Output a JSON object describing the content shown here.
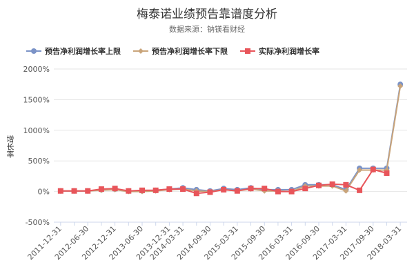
{
  "chart_data": {
    "type": "line",
    "title": "梅泰诺业绩预告靠谱度分析",
    "subtitle": "数据来源：钠镁看财经",
    "ylabel": "增长率",
    "xlabel": "",
    "ylim": [
      -500,
      2000
    ],
    "yticks": [
      "-500%",
      "0%",
      "500%",
      "1000%",
      "1500%",
      "2000%"
    ],
    "grid": "horizontal",
    "legend_position": "top-left",
    "x": [
      "2011-12-31",
      "2012-03-31",
      "2012-06-30",
      "2012-09-30",
      "2012-12-31",
      "2013-03-31",
      "2013-06-30",
      "2013-09-30",
      "2013-12-31",
      "2014-03-31",
      "2014-06-30",
      "2014-09-30",
      "2014-12-31",
      "2015-03-31",
      "2015-06-30",
      "2015-09-30",
      "2015-12-31",
      "2016-03-31",
      "2016-06-30",
      "2016-09-30",
      "2016-12-31",
      "2017-03-31",
      "2017-06-30",
      "2017-09-30",
      "2017-12-31",
      "2018-03-31"
    ],
    "x_tick_labels": [
      "2011-12-31",
      "2012-06-30",
      "2012-12-31",
      "2013-06-30",
      "2013-12-31",
      "2014-03-31",
      "2014-09-30",
      "2015-03-31",
      "2015-09-30",
      "2016-03-31",
      "2016-09-30",
      "2017-03-31",
      "2017-09-30",
      "2018-03-31"
    ],
    "series": [
      {
        "name": "预告净利润增长率上限",
        "color": "#7b93c7",
        "marker": "circle",
        "values": [
          10,
          10,
          10,
          30,
          40,
          10,
          10,
          20,
          40,
          60,
          30,
          10,
          50,
          30,
          60,
          30,
          30,
          30,
          110,
          110,
          110,
          30,
          380,
          380,
          380,
          1750
        ]
      },
      {
        "name": "预告净利润增长率下限",
        "color": "#c9a47a",
        "marker": "diamond",
        "values": [
          10,
          10,
          10,
          20,
          30,
          0,
          0,
          10,
          30,
          40,
          10,
          0,
          30,
          10,
          40,
          10,
          10,
          0,
          90,
          90,
          90,
          10,
          350,
          350,
          350,
          1720
        ]
      },
      {
        "name": "实际净利润增长率",
        "color": "#e8555a",
        "marker": "square",
        "values": [
          10,
          10,
          10,
          40,
          50,
          10,
          20,
          20,
          40,
          40,
          -30,
          -10,
          30,
          10,
          50,
          50,
          0,
          0,
          50,
          100,
          120,
          110,
          20,
          360,
          300,
          null
        ]
      }
    ]
  }
}
